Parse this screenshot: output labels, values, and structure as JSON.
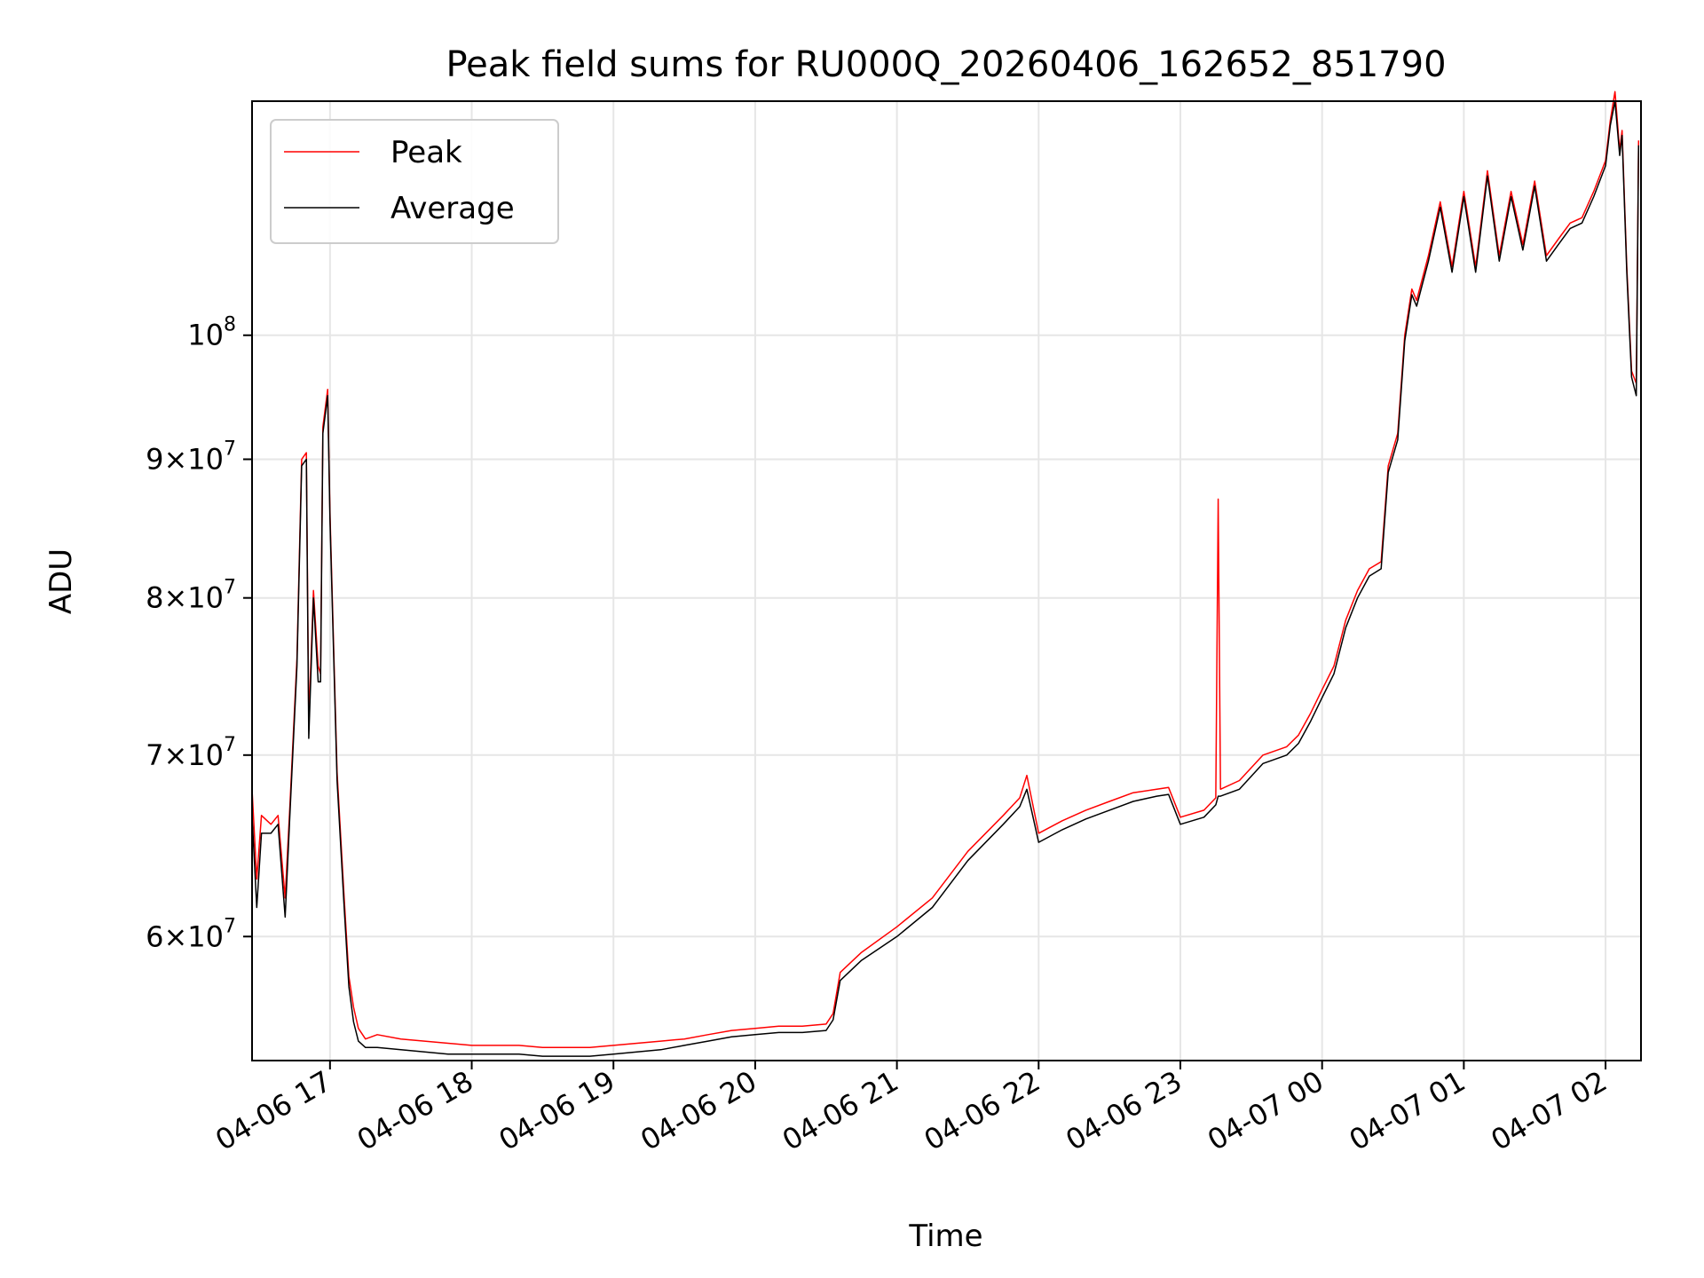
{
  "chart_data": {
    "type": "line",
    "title": "Peak field sums for RU000Q_20260406_162652_851790",
    "xlabel": "Time",
    "ylabel": "ADU",
    "x_axis_type": "datetime",
    "xlim": [
      "04-06 16:27",
      "04-07 02:15"
    ],
    "ylim": [
      54000000,
      122000000
    ],
    "y_scale": "log",
    "grid": true,
    "legend_position": "top-left",
    "x_ticks": [
      {
        "time": "04-06 17:00",
        "label": "04-06 17"
      },
      {
        "time": "04-06 18:00",
        "label": "04-06 18"
      },
      {
        "time": "04-06 19:00",
        "label": "04-06 19"
      },
      {
        "time": "04-06 20:00",
        "label": "04-06 20"
      },
      {
        "time": "04-06 21:00",
        "label": "04-06 21"
      },
      {
        "time": "04-06 22:00",
        "label": "04-06 22"
      },
      {
        "time": "04-06 23:00",
        "label": "04-06 23"
      },
      {
        "time": "04-07 00:00",
        "label": "04-07 00"
      },
      {
        "time": "04-07 01:00",
        "label": "04-07 01"
      },
      {
        "time": "04-07 02:00",
        "label": "04-07 02"
      }
    ],
    "y_ticks": [
      {
        "value": 60000000,
        "mantissa": "6",
        "base": "10",
        "exp": "7"
      },
      {
        "value": 70000000,
        "mantissa": "7",
        "base": "10",
        "exp": "7"
      },
      {
        "value": 80000000,
        "mantissa": "8",
        "base": "10",
        "exp": "7"
      },
      {
        "value": 90000000,
        "mantissa": "9",
        "base": "10",
        "exp": "7"
      },
      {
        "value": 100000000,
        "mantissa": "",
        "base": "10",
        "exp": "8"
      }
    ],
    "series": [
      {
        "name": "Peak",
        "color": "#ff0000",
        "points": [
          [
            "04-06 16:27",
            68000000
          ],
          [
            "04-06 16:29",
            63000000
          ],
          [
            "04-06 16:31",
            66500000
          ],
          [
            "04-06 16:35",
            66000000
          ],
          [
            "04-06 16:38",
            66500000
          ],
          [
            "04-06 16:41",
            62000000
          ],
          [
            "04-06 16:43",
            67000000
          ],
          [
            "04-06 16:46",
            76000000
          ],
          [
            "04-06 16:48",
            90000000
          ],
          [
            "04-06 16:50",
            90500000
          ],
          [
            "04-06 16:51",
            72000000
          ],
          [
            "04-06 16:53",
            80500000
          ],
          [
            "04-06 16:55",
            75500000
          ],
          [
            "04-06 16:56",
            75000000
          ],
          [
            "04-06 16:57",
            92500000
          ],
          [
            "04-06 16:59",
            95500000
          ],
          [
            "04-06 17:00",
            86000000
          ],
          [
            "04-06 17:03",
            69000000
          ],
          [
            "04-06 17:06",
            62000000
          ],
          [
            "04-06 17:08",
            58000000
          ],
          [
            "04-06 17:10",
            56500000
          ],
          [
            "04-06 17:12",
            55500000
          ],
          [
            "04-06 17:15",
            55000000
          ],
          [
            "04-06 17:20",
            55200000
          ],
          [
            "04-06 17:30",
            55000000
          ],
          [
            "04-06 17:40",
            54900000
          ],
          [
            "04-06 17:50",
            54800000
          ],
          [
            "04-06 18:00",
            54700000
          ],
          [
            "04-06 18:10",
            54700000
          ],
          [
            "04-06 18:20",
            54700000
          ],
          [
            "04-06 18:30",
            54600000
          ],
          [
            "04-06 18:40",
            54600000
          ],
          [
            "04-06 18:50",
            54600000
          ],
          [
            "04-06 19:00",
            54700000
          ],
          [
            "04-06 19:10",
            54800000
          ],
          [
            "04-06 19:20",
            54900000
          ],
          [
            "04-06 19:30",
            55000000
          ],
          [
            "04-06 19:40",
            55200000
          ],
          [
            "04-06 19:50",
            55400000
          ],
          [
            "04-06 20:00",
            55500000
          ],
          [
            "04-06 20:10",
            55600000
          ],
          [
            "04-06 20:20",
            55600000
          ],
          [
            "04-06 20:30",
            55700000
          ],
          [
            "04-06 20:33",
            56200000
          ],
          [
            "04-06 20:36",
            58200000
          ],
          [
            "04-06 20:45",
            59200000
          ],
          [
            "04-06 21:00",
            60500000
          ],
          [
            "04-06 21:15",
            62000000
          ],
          [
            "04-06 21:30",
            64500000
          ],
          [
            "04-06 21:45",
            66500000
          ],
          [
            "04-06 21:52",
            67500000
          ],
          [
            "04-06 21:55",
            68800000
          ],
          [
            "04-06 22:00",
            65500000
          ],
          [
            "04-06 22:10",
            66200000
          ],
          [
            "04-06 22:20",
            66800000
          ],
          [
            "04-06 22:30",
            67300000
          ],
          [
            "04-06 22:40",
            67800000
          ],
          [
            "04-06 22:50",
            68000000
          ],
          [
            "04-06 22:55",
            68100000
          ],
          [
            "04-06 23:00",
            66400000
          ],
          [
            "04-06 23:10",
            66800000
          ],
          [
            "04-06 23:15",
            67500000
          ],
          [
            "04-06 23:16",
            87000000
          ],
          [
            "04-06 23:17",
            68000000
          ],
          [
            "04-06 23:25",
            68500000
          ],
          [
            "04-06 23:35",
            70000000
          ],
          [
            "04-06 23:45",
            70500000
          ],
          [
            "04-06 23:50",
            71200000
          ],
          [
            "04-06 23:55",
            72500000
          ],
          [
            "04-07 00:00",
            74000000
          ],
          [
            "04-07 00:05",
            75500000
          ],
          [
            "04-07 00:10",
            78500000
          ],
          [
            "04-07 00:15",
            80500000
          ],
          [
            "04-07 00:20",
            82000000
          ],
          [
            "04-07 00:25",
            82500000
          ],
          [
            "04-07 00:28",
            89500000
          ],
          [
            "04-07 00:32",
            92000000
          ],
          [
            "04-07 00:35",
            100000000
          ],
          [
            "04-07 00:38",
            104000000
          ],
          [
            "04-07 00:40",
            103000000
          ],
          [
            "04-07 00:45",
            107000000
          ],
          [
            "04-07 00:50",
            112000000
          ],
          [
            "04-07 00:55",
            106000000
          ],
          [
            "04-07 01:00",
            113000000
          ],
          [
            "04-07 01:05",
            106000000
          ],
          [
            "04-07 01:10",
            115000000
          ],
          [
            "04-07 01:15",
            107000000
          ],
          [
            "04-07 01:20",
            113000000
          ],
          [
            "04-07 01:25",
            108000000
          ],
          [
            "04-07 01:30",
            114000000
          ],
          [
            "04-07 01:35",
            107000000
          ],
          [
            "04-07 01:40",
            108500000
          ],
          [
            "04-07 01:45",
            110000000
          ],
          [
            "04-07 01:50",
            110500000
          ],
          [
            "04-07 01:55",
            113000000
          ],
          [
            "04-07 02:00",
            116000000
          ],
          [
            "04-07 02:02",
            120000000
          ],
          [
            "04-07 02:04",
            123000000
          ],
          [
            "04-07 02:06",
            117000000
          ],
          [
            "04-07 02:07",
            119000000
          ],
          [
            "04-07 02:09",
            106000000
          ],
          [
            "04-07 02:11",
            97000000
          ],
          [
            "04-07 02:13",
            96000000
          ],
          [
            "04-07 02:14",
            118000000
          ]
        ]
      },
      {
        "name": "Average",
        "color": "#000000",
        "points": [
          [
            "04-06 16:27",
            66500000
          ],
          [
            "04-06 16:29",
            61500000
          ],
          [
            "04-06 16:31",
            65500000
          ],
          [
            "04-06 16:35",
            65500000
          ],
          [
            "04-06 16:38",
            66000000
          ],
          [
            "04-06 16:41",
            61000000
          ],
          [
            "04-06 16:43",
            66500000
          ],
          [
            "04-06 16:46",
            75500000
          ],
          [
            "04-06 16:48",
            89500000
          ],
          [
            "04-06 16:50",
            90000000
          ],
          [
            "04-06 16:51",
            71000000
          ],
          [
            "04-06 16:53",
            80000000
          ],
          [
            "04-06 16:55",
            74500000
          ],
          [
            "04-06 16:56",
            74500000
          ],
          [
            "04-06 16:57",
            92000000
          ],
          [
            "04-06 16:59",
            95000000
          ],
          [
            "04-06 17:00",
            85500000
          ],
          [
            "04-06 17:03",
            68500000
          ],
          [
            "04-06 17:06",
            61500000
          ],
          [
            "04-06 17:08",
            57500000
          ],
          [
            "04-06 17:10",
            55800000
          ],
          [
            "04-06 17:12",
            54900000
          ],
          [
            "04-06 17:15",
            54600000
          ],
          [
            "04-06 17:20",
            54600000
          ],
          [
            "04-06 17:30",
            54500000
          ],
          [
            "04-06 17:40",
            54400000
          ],
          [
            "04-06 17:50",
            54300000
          ],
          [
            "04-06 18:00",
            54300000
          ],
          [
            "04-06 18:10",
            54300000
          ],
          [
            "04-06 18:20",
            54300000
          ],
          [
            "04-06 18:30",
            54200000
          ],
          [
            "04-06 18:40",
            54200000
          ],
          [
            "04-06 18:50",
            54200000
          ],
          [
            "04-06 19:00",
            54300000
          ],
          [
            "04-06 19:10",
            54400000
          ],
          [
            "04-06 19:20",
            54500000
          ],
          [
            "04-06 19:30",
            54700000
          ],
          [
            "04-06 19:40",
            54900000
          ],
          [
            "04-06 19:50",
            55100000
          ],
          [
            "04-06 20:00",
            55200000
          ],
          [
            "04-06 20:10",
            55300000
          ],
          [
            "04-06 20:20",
            55300000
          ],
          [
            "04-06 20:30",
            55400000
          ],
          [
            "04-06 20:33",
            55900000
          ],
          [
            "04-06 20:36",
            57800000
          ],
          [
            "04-06 20:45",
            58800000
          ],
          [
            "04-06 21:00",
            60000000
          ],
          [
            "04-06 21:15",
            61500000
          ],
          [
            "04-06 21:30",
            64000000
          ],
          [
            "04-06 21:45",
            66000000
          ],
          [
            "04-06 21:52",
            67000000
          ],
          [
            "04-06 21:55",
            68000000
          ],
          [
            "04-06 22:00",
            65000000
          ],
          [
            "04-06 22:10",
            65700000
          ],
          [
            "04-06 22:20",
            66300000
          ],
          [
            "04-06 22:30",
            66800000
          ],
          [
            "04-06 22:40",
            67300000
          ],
          [
            "04-06 22:50",
            67600000
          ],
          [
            "04-06 22:55",
            67700000
          ],
          [
            "04-06 23:00",
            66000000
          ],
          [
            "04-06 23:10",
            66400000
          ],
          [
            "04-06 23:15",
            67100000
          ],
          [
            "04-06 23:16",
            67600000
          ],
          [
            "04-06 23:17",
            67600000
          ],
          [
            "04-06 23:25",
            68000000
          ],
          [
            "04-06 23:35",
            69500000
          ],
          [
            "04-06 23:45",
            70000000
          ],
          [
            "04-06 23:50",
            70700000
          ],
          [
            "04-06 23:55",
            72000000
          ],
          [
            "04-07 00:00",
            73500000
          ],
          [
            "04-07 00:05",
            75000000
          ],
          [
            "04-07 00:10",
            78000000
          ],
          [
            "04-07 00:15",
            80000000
          ],
          [
            "04-07 00:20",
            81500000
          ],
          [
            "04-07 00:25",
            82000000
          ],
          [
            "04-07 00:28",
            89000000
          ],
          [
            "04-07 00:32",
            91500000
          ],
          [
            "04-07 00:35",
            99500000
          ],
          [
            "04-07 00:38",
            103500000
          ],
          [
            "04-07 00:40",
            102500000
          ],
          [
            "04-07 00:45",
            106500000
          ],
          [
            "04-07 00:50",
            111500000
          ],
          [
            "04-07 00:55",
            105500000
          ],
          [
            "04-07 01:00",
            112500000
          ],
          [
            "04-07 01:05",
            105500000
          ],
          [
            "04-07 01:10",
            114500000
          ],
          [
            "04-07 01:15",
            106500000
          ],
          [
            "04-07 01:20",
            112500000
          ],
          [
            "04-07 01:25",
            107500000
          ],
          [
            "04-07 01:30",
            113500000
          ],
          [
            "04-07 01:35",
            106500000
          ],
          [
            "04-07 01:40",
            108000000
          ],
          [
            "04-07 01:45",
            109500000
          ],
          [
            "04-07 01:50",
            110000000
          ],
          [
            "04-07 01:55",
            112500000
          ],
          [
            "04-07 02:00",
            115500000
          ],
          [
            "04-07 02:02",
            119500000
          ],
          [
            "04-07 02:04",
            122000000
          ],
          [
            "04-07 02:06",
            116500000
          ],
          [
            "04-07 02:07",
            118500000
          ],
          [
            "04-07 02:09",
            105500000
          ],
          [
            "04-07 02:11",
            96500000
          ],
          [
            "04-07 02:13",
            95000000
          ],
          [
            "04-07 02:14",
            117500000
          ]
        ]
      }
    ]
  }
}
